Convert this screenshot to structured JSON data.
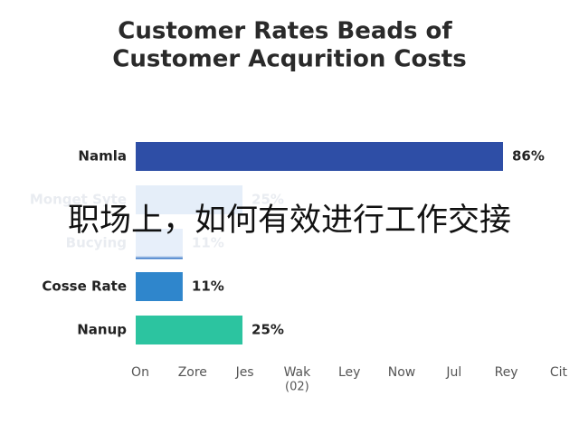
{
  "chart_data": {
    "type": "hbar",
    "title_lines": [
      "Customer Rates Beads of",
      "Customer Acqurition Costs"
    ],
    "categories": [
      "Namla",
      "Monget Syte",
      "Bucying",
      "Cosse Rate",
      "Nanup"
    ],
    "values": [
      86,
      25,
      11,
      11,
      25
    ],
    "value_labels": [
      "86%",
      "25%",
      "11%",
      "11%",
      "25%"
    ],
    "colors": [
      "#2e4ea6",
      "#c6d9f1",
      "#c9dcf3",
      "#2f86cc",
      "#2cc4a0"
    ],
    "x_tick_labels": [
      "On",
      "Zore",
      "Jes",
      "Wak",
      "Ley",
      "Now",
      "Jul",
      "Rey",
      "Cit"
    ],
    "x_tick_sublabel": "(02)",
    "overlay_text": "职场上，如何有效进行工作交接"
  }
}
